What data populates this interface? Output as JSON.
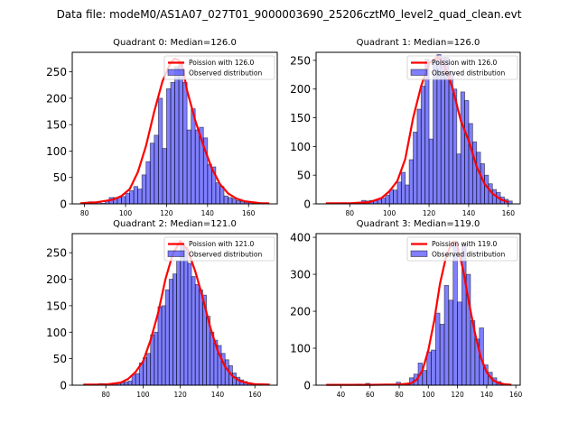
{
  "figure": {
    "suptitle": "Data file: modeM0/AS1A07_027T01_9000003690_25206cztM0_level2_quad_clean.evt"
  },
  "chart_data": [
    {
      "type": "bar",
      "title": "Quadrant 0: Median=126.0",
      "xlabel": "",
      "ylabel": "",
      "xlim": [
        74,
        174
      ],
      "ylim": [
        0,
        287
      ],
      "xticks": [
        80,
        100,
        120,
        140,
        160
      ],
      "yticks": [
        0,
        50,
        100,
        150,
        200,
        250
      ],
      "grid": false,
      "legend": {
        "position": "top-right",
        "entries": [
          "Poission with 126.0",
          "Observed distribution"
        ]
      },
      "bin_width": 2,
      "bins_left": [
        78,
        80,
        82,
        84,
        86,
        88,
        90,
        92,
        94,
        96,
        98,
        100,
        102,
        104,
        106,
        108,
        110,
        112,
        114,
        116,
        118,
        120,
        122,
        124,
        126,
        128,
        130,
        132,
        134,
        136,
        138,
        140,
        142,
        144,
        146,
        148,
        150,
        152,
        154,
        156,
        158,
        160,
        162,
        164,
        166,
        168
      ],
      "observed": [
        2,
        3,
        4,
        1,
        4,
        1,
        5,
        12,
        12,
        12,
        14,
        20,
        25,
        33,
        28,
        55,
        80,
        115,
        130,
        200,
        105,
        218,
        230,
        260,
        270,
        230,
        140,
        180,
        140,
        145,
        125,
        75,
        70,
        40,
        33,
        15,
        12,
        10,
        6,
        5,
        3,
        4,
        3,
        2,
        1,
        1
      ],
      "poisson_mean": 126.0,
      "poisson_curve_x": [
        78,
        86,
        94,
        98,
        102,
        106,
        110,
        114,
        118,
        122,
        124,
        126,
        128,
        130,
        134,
        138,
        142,
        146,
        150,
        154,
        158,
        162,
        166,
        170
      ],
      "poisson_curve_y": [
        1,
        3,
        8,
        15,
        28,
        60,
        110,
        175,
        232,
        268,
        275,
        272,
        255,
        215,
        158,
        110,
        68,
        38,
        20,
        10,
        5,
        3,
        1,
        1
      ],
      "series": [
        {
          "name": "Observed distribution",
          "color": "#0000ff",
          "alpha": 0.5
        },
        {
          "name": "Poission with 126.0",
          "color": "#ff0000"
        }
      ]
    },
    {
      "type": "bar",
      "title": "Quadrant 1: Median=126.0",
      "xlabel": "",
      "ylabel": "",
      "xlim": [
        63,
        166
      ],
      "ylim": [
        0,
        264
      ],
      "xticks": [
        80,
        100,
        120,
        140,
        160
      ],
      "yticks": [
        0,
        50,
        100,
        150,
        200,
        250
      ],
      "grid": false,
      "legend": {
        "position": "top-right",
        "entries": [
          "Poission with 126.0",
          "Observed distribution"
        ]
      },
      "bin_width": 2,
      "bins_left": [
        68,
        70,
        72,
        74,
        76,
        78,
        80,
        82,
        84,
        86,
        88,
        90,
        92,
        94,
        96,
        98,
        100,
        102,
        104,
        106,
        108,
        110,
        112,
        114,
        116,
        118,
        120,
        122,
        124,
        126,
        128,
        130,
        132,
        134,
        136,
        138,
        140,
        142,
        144,
        146,
        148,
        150,
        152,
        154,
        156,
        158,
        160
      ],
      "observed": [
        1,
        1,
        1,
        1,
        2,
        1,
        1,
        2,
        3,
        6,
        5,
        6,
        6,
        8,
        10,
        15,
        25,
        24,
        38,
        55,
        33,
        77,
        125,
        165,
        205,
        252,
        113,
        250,
        260,
        255,
        255,
        230,
        200,
        87,
        195,
        180,
        140,
        108,
        90,
        70,
        50,
        35,
        25,
        20,
        12,
        8,
        5
      ],
      "poisson_mean": 126.0,
      "poisson_curve_x": [
        68,
        80,
        90,
        96,
        100,
        104,
        108,
        112,
        116,
        120,
        124,
        126,
        128,
        132,
        136,
        140,
        144,
        148,
        152,
        156,
        160
      ],
      "poisson_curve_y": [
        1,
        1,
        3,
        10,
        22,
        40,
        78,
        150,
        205,
        245,
        255,
        252,
        240,
        200,
        145,
        110,
        65,
        35,
        18,
        8,
        3
      ],
      "series": [
        {
          "name": "Observed distribution",
          "color": "#0000ff",
          "alpha": 0.5
        },
        {
          "name": "Poission with 126.0",
          "color": "#ff0000"
        }
      ]
    },
    {
      "type": "bar",
      "title": "Quadrant 2: Median=121.0",
      "xlabel": "",
      "ylabel": "",
      "xlim": [
        62,
        172
      ],
      "ylim": [
        0,
        286
      ],
      "xticks": [
        80,
        100,
        120,
        140,
        160
      ],
      "yticks": [
        0,
        50,
        100,
        150,
        200,
        250
      ],
      "grid": false,
      "legend": {
        "position": "top-right",
        "entries": [
          "Poission with 121.0",
          "Observed distribution"
        ]
      },
      "bin_width": 2,
      "bins_left": [
        68,
        70,
        72,
        74,
        76,
        78,
        80,
        82,
        84,
        86,
        88,
        90,
        92,
        94,
        96,
        98,
        100,
        102,
        104,
        106,
        108,
        110,
        112,
        114,
        116,
        118,
        120,
        122,
        124,
        126,
        128,
        130,
        132,
        134,
        136,
        138,
        140,
        142,
        144,
        146,
        148,
        150,
        152,
        154,
        156,
        160,
        164
      ],
      "observed": [
        1,
        1,
        1,
        2,
        3,
        3,
        2,
        1,
        4,
        4,
        5,
        6,
        8,
        20,
        22,
        42,
        52,
        60,
        95,
        100,
        148,
        150,
        180,
        200,
        210,
        235,
        265,
        260,
        230,
        205,
        190,
        180,
        170,
        130,
        100,
        85,
        75,
        60,
        48,
        37,
        23,
        15,
        10,
        7,
        5,
        2,
        1
      ],
      "poisson_mean": 121.0,
      "poisson_curve_x": [
        68,
        80,
        88,
        92,
        96,
        100,
        104,
        108,
        112,
        116,
        120,
        124,
        128,
        132,
        136,
        140,
        144,
        148,
        152,
        156,
        160,
        168
      ],
      "poisson_curve_y": [
        1,
        1,
        5,
        12,
        25,
        45,
        85,
        135,
        200,
        248,
        272,
        255,
        215,
        165,
        110,
        65,
        35,
        17,
        8,
        4,
        2,
        1
      ],
      "series": [
        {
          "name": "Observed distribution",
          "color": "#0000ff",
          "alpha": 0.5
        },
        {
          "name": "Poission with 121.0",
          "color": "#ff0000"
        }
      ]
    },
    {
      "type": "bar",
      "title": "Quadrant 3: Median=119.0",
      "xlabel": "",
      "ylabel": "",
      "xlim": [
        23,
        163
      ],
      "ylim": [
        0,
        410
      ],
      "xticks": [
        40,
        60,
        80,
        100,
        120,
        140,
        160
      ],
      "yticks": [
        0,
        100,
        200,
        300,
        400
      ],
      "grid": false,
      "legend": {
        "position": "top-right",
        "entries": [
          "Poission with 119.0",
          "Observed distribution"
        ]
      },
      "bin_width": 2.9,
      "bins_left": [
        30,
        33,
        36,
        39,
        42,
        45,
        48,
        51,
        54,
        57,
        60,
        63,
        66,
        69,
        72,
        75,
        78,
        81,
        84,
        87,
        90,
        93,
        96,
        99,
        102,
        105,
        108,
        111,
        114,
        117,
        120,
        123,
        126,
        129,
        132,
        135,
        138,
        141,
        144,
        147,
        150,
        153
      ],
      "observed": [
        1,
        1,
        1,
        0,
        1,
        1,
        1,
        3,
        2,
        5,
        2,
        1,
        1,
        3,
        2,
        3,
        8,
        4,
        5,
        20,
        30,
        60,
        40,
        90,
        95,
        195,
        165,
        270,
        230,
        390,
        225,
        380,
        300,
        175,
        125,
        155,
        55,
        35,
        20,
        10,
        3,
        1
      ],
      "poisson_mean": 119.0,
      "poisson_curve_x": [
        30,
        60,
        80,
        88,
        92,
        96,
        100,
        104,
        108,
        112,
        116,
        118,
        120,
        124,
        128,
        132,
        136,
        140,
        144,
        148,
        152,
        157
      ],
      "poisson_curve_y": [
        1,
        1,
        2,
        5,
        15,
        40,
        95,
        175,
        275,
        345,
        385,
        388,
        375,
        310,
        220,
        140,
        75,
        35,
        15,
        6,
        3,
        1
      ],
      "series": [
        {
          "name": "Observed distribution",
          "color": "#0000ff",
          "alpha": 0.5
        },
        {
          "name": "Poission with 119.0",
          "color": "#ff0000"
        }
      ]
    }
  ]
}
